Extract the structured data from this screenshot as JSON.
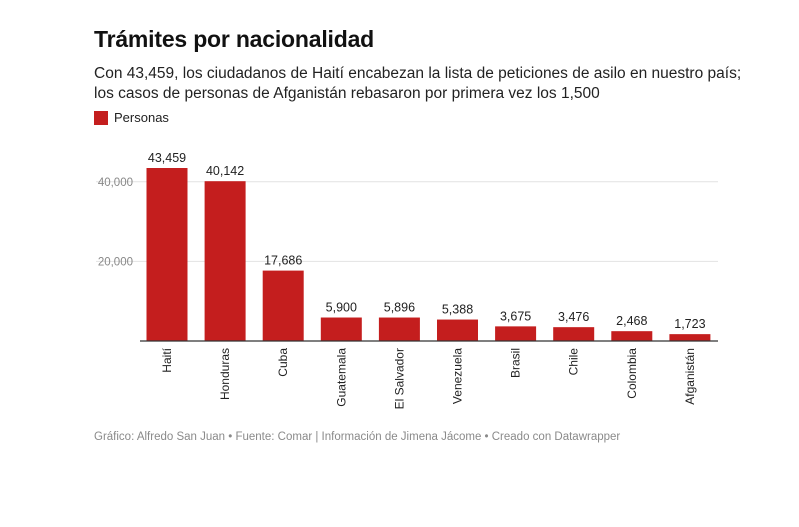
{
  "colors": {
    "bar": "#c41e1e",
    "grid": "#e2e2e2",
    "axis": "#333333",
    "tick_text": "#888888"
  },
  "footer": {
    "text": "Gráfico: Alfredo San Juan • Fuente: Comar | Información de Jimena Jácome • Creado con Datawrapper"
  },
  "chart_data": {
    "type": "bar",
    "title": "Trámites por nacionalidad",
    "subtitle": "Con 43,459, los ciudadanos de Haití encabezan la lista de peticiones de asilo en nuestro país; los casos de personas de Afganistán rebasaron por primera vez los 1,500",
    "legend": [
      "Personas"
    ],
    "categories": [
      "Haití",
      "Honduras",
      "Cuba",
      "Guatemala",
      "El Salvador",
      "Venezuela",
      "Brasil",
      "Chile",
      "Colombia",
      "Afganistán"
    ],
    "values": [
      43459,
      40142,
      17686,
      5900,
      5896,
      5388,
      3675,
      3476,
      2468,
      1723
    ],
    "value_labels": [
      "43,459",
      "40,142",
      "17,686",
      "5,900",
      "5,896",
      "5,388",
      "3,675",
      "3,476",
      "2,468",
      "1,723"
    ],
    "y_ticks": [
      20000,
      40000
    ],
    "y_tick_labels": [
      "20,000",
      "40,000"
    ],
    "ylim": [
      0,
      43459
    ],
    "xlabel": "",
    "ylabel": "",
    "grid": true
  }
}
